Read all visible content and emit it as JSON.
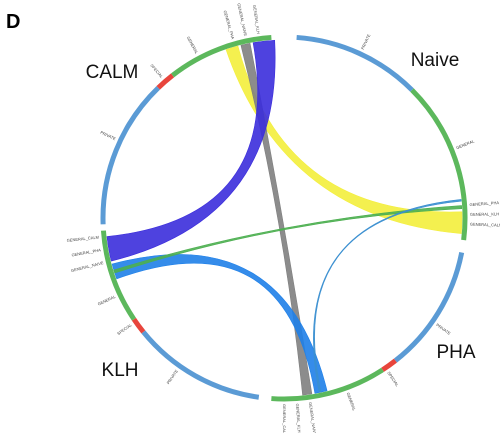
{
  "panel": "D",
  "groups": [
    {
      "name": "CALM",
      "segments": [
        "PRIVATE",
        "SPECIAL",
        "GENERAL",
        "GENERAL_PHA",
        "GENERAL_NAIVE",
        "GENERAL_KLH"
      ]
    },
    {
      "name": "Naive",
      "segments": [
        "PRIVATE",
        "GENERAL",
        "GENERAL_PHA",
        "GENERAL_KLH",
        "GENERAL_CALM"
      ]
    },
    {
      "name": "PHA",
      "segments": [
        "PRIVATE",
        "SPECIAL",
        "GENERAL",
        "GENERAL_NAIVE",
        "GENERAL_KLH",
        "GENERAL_CALM"
      ]
    },
    {
      "name": "KLH",
      "segments": [
        "PRIVATE",
        "SPECIAL",
        "GENERAL",
        "GENERAL_NAIVE",
        "GENERAL_PHA",
        "GENERAL_CALM"
      ]
    }
  ]
}
